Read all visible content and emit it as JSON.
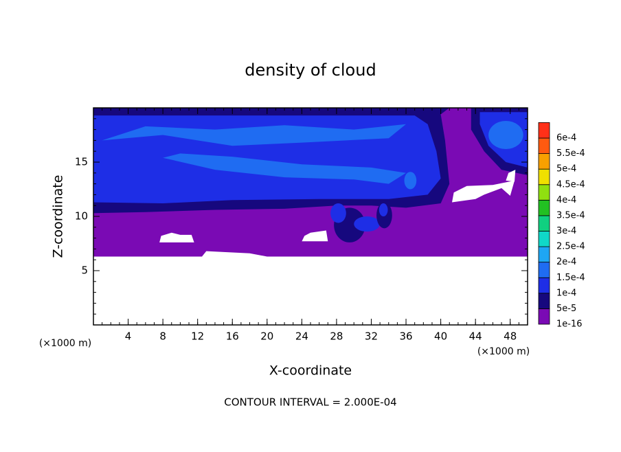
{
  "chart_data": {
    "type": "contour",
    "title": "density of cloud",
    "x_label": "X-coordinate",
    "y_label": "Z-coordinate",
    "x_unit": "(×1000 m)",
    "y_unit": "(×1000 m)",
    "annotation": "CONTOUR INTERVAL = 2.000E-04",
    "xlim": [
      0,
      50
    ],
    "ylim": [
      0,
      20
    ],
    "xticks": [
      4,
      8,
      12,
      16,
      20,
      24,
      28,
      32,
      36,
      40,
      44,
      48
    ],
    "yticks": [
      5,
      10,
      15
    ],
    "colorbar": {
      "levels": [
        {
          "value": 1e-16,
          "label": "1e-16"
        },
        {
          "value": 5e-05,
          "label": "5e-5"
        },
        {
          "value": 0.0001,
          "label": "1e-4"
        },
        {
          "value": 0.00015,
          "label": "1.5e-4"
        },
        {
          "value": 0.0002,
          "label": "2e-4"
        },
        {
          "value": 0.00025,
          "label": "2.5e-4"
        },
        {
          "value": 0.0003,
          "label": "3e-4"
        },
        {
          "value": 0.00035,
          "label": "3.5e-4"
        },
        {
          "value": 0.0004,
          "label": "4e-4"
        },
        {
          "value": 0.00045,
          "label": "4.5e-4"
        },
        {
          "value": 0.0005,
          "label": "5e-4"
        },
        {
          "value": 0.00055,
          "label": "5.5e-4"
        },
        {
          "value": 0.0006,
          "label": "6e-4"
        }
      ],
      "colors": [
        "#7a0ab4",
        "#16087e",
        "#1e2ee6",
        "#1f6cf2",
        "#1ea6f4",
        "#10d8c8",
        "#10d080",
        "#22c022",
        "#90e010",
        "#f0e000",
        "#f8a000",
        "#ff5a10",
        "#ff3018"
      ]
    }
  }
}
